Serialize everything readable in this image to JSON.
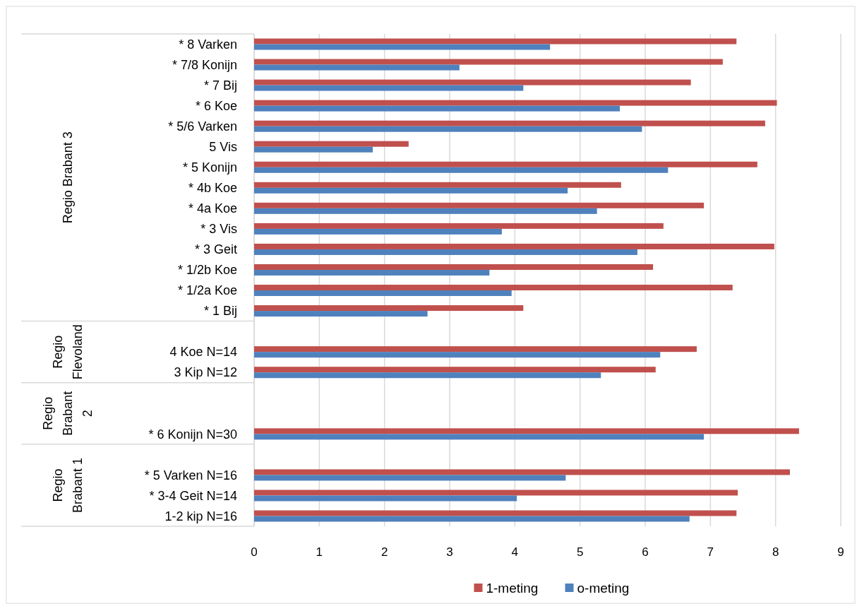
{
  "chart_data": {
    "type": "bar",
    "orientation": "horizontal",
    "categories": [
      "* 8 Varken",
      "* 7/8 Konijn",
      "* 7 Bij",
      "* 6 Koe",
      "* 5/6 Varken",
      "5 Vis",
      "* 5 Konijn",
      "* 4b Koe",
      "* 4a Koe",
      "* 3 Vis",
      "* 3 Geit",
      "* 1/2b Koe",
      "* 1/2a Koe",
      "* 1 Bij",
      null,
      "4 Koe N=14",
      "3 Kip N=12",
      null,
      null,
      "* 6 Konijn N=30",
      null,
      "* 5 Varken N=16",
      "* 3-4 Geit N=14",
      "1-2 kip N=16"
    ],
    "series": [
      {
        "name": "1-meting",
        "color": "#c0504d",
        "values": [
          7.4,
          7.19,
          6.7,
          8.02,
          7.84,
          2.37,
          7.72,
          5.63,
          6.9,
          6.28,
          7.98,
          6.12,
          7.34,
          4.13,
          null,
          6.79,
          6.16,
          null,
          null,
          8.36,
          null,
          8.22,
          7.42,
          7.4
        ]
      },
      {
        "name": "o-meting",
        "color": "#4f81bd",
        "values": [
          4.54,
          3.15,
          4.13,
          5.61,
          5.95,
          1.82,
          6.35,
          4.81,
          5.26,
          3.8,
          5.88,
          3.61,
          3.95,
          2.66,
          null,
          6.23,
          5.32,
          null,
          null,
          6.9,
          null,
          4.78,
          4.03,
          6.68
        ]
      }
    ],
    "xlim": [
      0,
      9
    ],
    "xticks": [
      0,
      1,
      2,
      3,
      4,
      5,
      6,
      7,
      8,
      9
    ],
    "grid": "x",
    "legend": "bottom",
    "annotations": [
      "Regio Brabant 3",
      "Regio Flevoland",
      "Regio Brabant 2",
      "Regio Brabant 1"
    ]
  }
}
